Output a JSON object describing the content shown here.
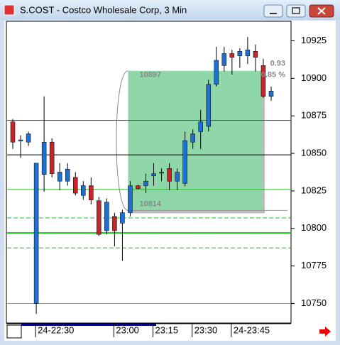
{
  "window_title": "S.COST - Costco Wholesale Corp, 3 Min",
  "chart_data": {
    "type": "candlestick",
    "categories": [
      null,
      null,
      null,
      "24-22:30",
      null,
      null,
      null,
      null,
      null,
      null,
      null,
      null,
      null,
      "23:00",
      null,
      null,
      null,
      null,
      "23:15",
      null,
      null,
      null,
      null,
      "23:30",
      null,
      null,
      null,
      null,
      "24-23:45",
      null,
      null,
      null,
      null,
      null
    ],
    "open": [
      10871,
      10858.5,
      10857.5,
      10750,
      10836,
      10857.5,
      10831.5,
      10831.5,
      10834,
      10822,
      10828.5,
      10818.5,
      10798.5,
      10808,
      10803.5,
      10810.5,
      10828.5,
      10828.5,
      10835,
      10837,
      10840,
      10831.5,
      10830,
      10857.5,
      10864.5,
      10868,
      10896,
      10908.5,
      10916.5,
      10915,
      10915,
      10918,
      10908.5,
      10888
    ],
    "high": [
      10873,
      10862,
      10864.5,
      10843.5,
      10888,
      10860,
      10843.5,
      10843.5,
      10837.5,
      10831.5,
      10834,
      10821,
      10820,
      10810.5,
      10812.5,
      10831.5,
      10829,
      10836.5,
      10843.5,
      10840,
      10843.5,
      10840,
      10864.5,
      10866,
      10879,
      10899,
      10921,
      10921,
      10919,
      10920,
      10927.5,
      10922.5,
      10913,
      10894.5
    ],
    "low": [
      10853,
      10847,
      10855,
      10743,
      10824.5,
      10834,
      10825.5,
      10828.5,
      10822,
      10819,
      10816,
      10795,
      10796,
      10788,
      10778.5,
      10808,
      10826,
      10823.5,
      10828.5,
      10831.5,
      10825.5,
      10825.5,
      10828,
      10853,
      10853,
      10864.5,
      10894.5,
      10904.5,
      10902.5,
      10907,
      10909.5,
      10904.5,
      10887,
      10885
    ],
    "close": [
      10857.5,
      10859,
      10863,
      10843.5,
      10857.5,
      10836.5,
      10837.5,
      10839.5,
      10823.5,
      10828.5,
      10819,
      10796,
      10817.5,
      10798.5,
      10810.5,
      10828.5,
      10826.5,
      10831.5,
      10836.5,
      10837.5,
      10831.5,
      10837.5,
      10858.5,
      10863,
      10871,
      10896,
      10912,
      10916.5,
      10914,
      10918,
      10919,
      10914,
      10888,
      10891.5
    ],
    "up_color": "#1f6fd1",
    "down_color": "#c0262c",
    "ylim": [
      10737,
      10938
    ],
    "yticks": [
      10750,
      10775,
      10800,
      10825,
      10850,
      10875,
      10900,
      10925
    ],
    "levels": [
      {
        "value": 10872,
        "color": "#d02020",
        "style": "solid"
      },
      {
        "value": 10849,
        "color": "#000000",
        "style": "solid"
      },
      {
        "value": 10826,
        "color": "#22bb22",
        "style": "solid"
      },
      {
        "value": 10807,
        "color": "#22bb22",
        "style": "dashed"
      },
      {
        "value": 10797,
        "color": "#11cc11",
        "style": "thick"
      },
      {
        "value": 10787,
        "color": "#22bb22",
        "style": "dashed"
      },
      {
        "value": 10750,
        "color": "#999999",
        "style": "solid"
      }
    ],
    "zone": {
      "from": 10812,
      "to": 10905,
      "color": "#8fd6a8"
    },
    "annotations": [
      "10897",
      "10814",
      "0.93",
      "0.85 %"
    ]
  }
}
